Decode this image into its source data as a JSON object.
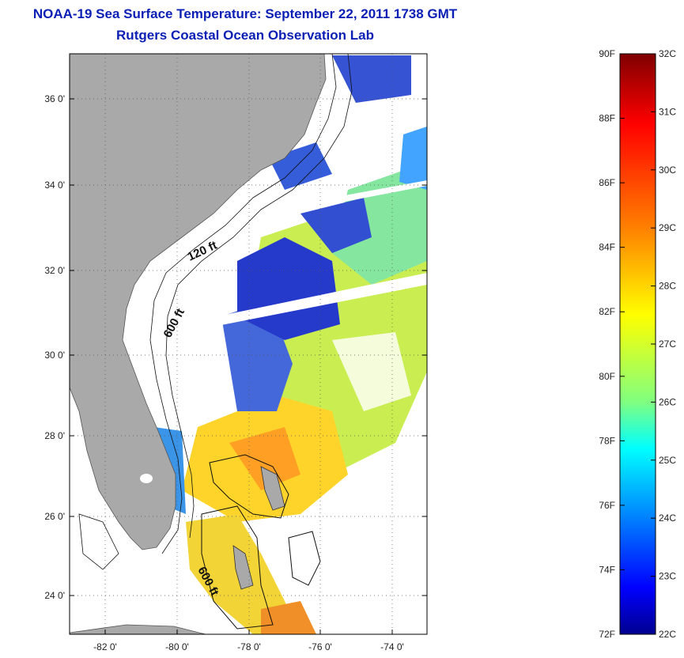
{
  "header": {
    "title": "NOAA-19 Sea Surface Temperature:  September 22, 2011 1738 GMT",
    "subtitle": "Rutgers Coastal Ocean Observation Lab"
  },
  "map": {
    "lat_ticks": [
      "36 0'",
      "34 0'",
      "32 0'",
      "30 0'",
      "28 0'",
      "26 0'",
      "24 0'"
    ],
    "lon_ticks": [
      "-82 0'",
      "-80 0'",
      "-78 0'",
      "-76 0'",
      "-74 0'"
    ],
    "contour_labels": [
      "120 ft",
      "600 ft",
      "600 ft"
    ],
    "land_color": "#a9a9a9"
  },
  "colorbar": {
    "f_labels": [
      "90F",
      "88F",
      "86F",
      "84F",
      "82F",
      "80F",
      "78F",
      "76F",
      "74F",
      "72F"
    ],
    "c_labels": [
      "32C",
      "31C",
      "30C",
      "29C",
      "28C",
      "27C",
      "26C",
      "25C",
      "24C",
      "23C",
      "22C"
    ],
    "colors": [
      "#7f0000",
      "#ff0000",
      "#ff8000",
      "#ffff00",
      "#80ff80",
      "#00ffff",
      "#0080ff",
      "#0000ff",
      "#00008f"
    ]
  }
}
